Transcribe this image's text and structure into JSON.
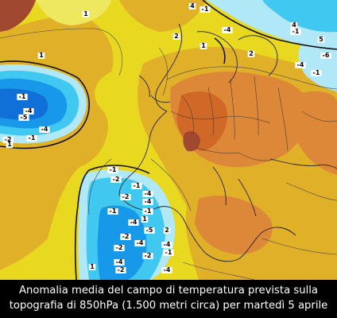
{
  "caption": {
    "line1": "Anomalia media del campo di temperatura prevista sulla",
    "line2": "topografia di 850hPa (1.500 metri circa) per martedì 5 aprile"
  },
  "colors": {
    "yellow": "#e8d820",
    "light_yellow": "#eee860",
    "gold": "#e0b028",
    "orange": "#dc8838",
    "dark_orange": "#d06828",
    "red_brown": "#a04830",
    "pale_blue": "#b0e8f8",
    "light_blue": "#40c8f0",
    "blue": "#1898e8",
    "deep_blue": "#1070d8"
  },
  "contour_labels": [
    "1",
    "1",
    "-1",
    "-4",
    "-2",
    "-5",
    "-4",
    "-1",
    "1",
    "-1",
    "-4",
    "-1",
    "-6",
    "-4",
    "-1",
    "1",
    "4",
    "2",
    "-1",
    "-2",
    "-1",
    "-4",
    "-2",
    "-4",
    "-1",
    "-1",
    "1",
    "-4",
    "-5",
    "-2",
    "2",
    "-4",
    "-2",
    "-4",
    "-1",
    "-2",
    "-4",
    "1",
    "-2",
    "-4",
    "4",
    "2",
    "5"
  ]
}
